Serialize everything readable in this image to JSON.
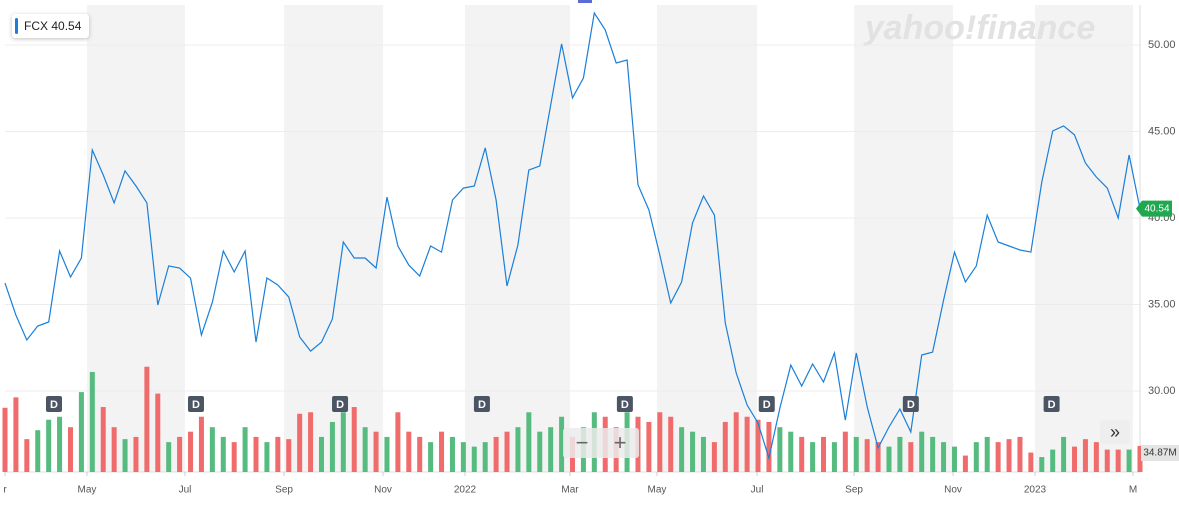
{
  "chart_data": {
    "type": "line",
    "watermark": "yahoo!finance",
    "series": [
      {
        "name": "FCX",
        "color": "#1a7fd9",
        "values": [
          36.24,
          34.39,
          32.95,
          33.76,
          33.99,
          38.09,
          36.59,
          37.69,
          43.93,
          42.49,
          40.87,
          42.72,
          41.85,
          40.87,
          34.97,
          37.23,
          37.11,
          36.53,
          33.24,
          35.14,
          38.09,
          36.88,
          38.09,
          32.83,
          36.53,
          36.13,
          35.43,
          33.12,
          32.31,
          32.83,
          34.16,
          38.61,
          37.69,
          37.69,
          37.11,
          41.21,
          38.38,
          37.28,
          36.65,
          38.38,
          38.03,
          41.04,
          41.73,
          41.85,
          44.05,
          41.04,
          36.07,
          38.44,
          42.77,
          43.01,
          46.53,
          50.06,
          46.94,
          48.09,
          51.85,
          50.87,
          48.96,
          49.13,
          41.91,
          40.46,
          37.86,
          35.09,
          36.3,
          39.71,
          41.27,
          40.17,
          33.93,
          31.04,
          29.19,
          28.15,
          26.13,
          29.02,
          31.5,
          30.29,
          31.56,
          30.52,
          32.2,
          28.32,
          32.2,
          29.08,
          26.71,
          27.92,
          28.96,
          27.63,
          32.08,
          32.25,
          35.26,
          38.03,
          36.3,
          37.23,
          40.17,
          38.61,
          38.38,
          38.15,
          38.03,
          42.08,
          45.03,
          45.32,
          44.8,
          43.18,
          42.37,
          41.73,
          40.0,
          43.64,
          40.54
        ]
      }
    ],
    "last_price_color": "#1fa84f",
    "xlim": [
      0,
      104
    ],
    "xticks": [
      {
        "value": 0,
        "label": "r"
      },
      {
        "value": 7.51,
        "label": "May"
      },
      {
        "value": 16.49,
        "label": "Jul"
      },
      {
        "value": 25.57,
        "label": "Sep"
      },
      {
        "value": 34.64,
        "label": "Nov"
      },
      {
        "value": 42.15,
        "label": "2022"
      },
      {
        "value": 51.77,
        "label": "Mar"
      },
      {
        "value": 59.74,
        "label": "May"
      },
      {
        "value": 68.91,
        "label": "Jul"
      },
      {
        "value": 77.8,
        "label": "Sep"
      },
      {
        "value": 86.87,
        "label": "Nov"
      },
      {
        "value": 94.38,
        "label": "2023"
      },
      {
        "value": 103.36,
        "label": "M"
      }
    ],
    "ylim": [
      25.32,
      52.31
    ],
    "yticks": [
      {
        "value": 30,
        "label": "30.00"
      },
      {
        "value": 35,
        "label": "35.00"
      },
      {
        "value": 40,
        "label": "40.00"
      },
      {
        "value": 45,
        "label": "45.00"
      },
      {
        "value": 50,
        "label": "50.00"
      }
    ],
    "grid": true,
    "volume": {
      "ylim": [
        0,
        150
      ],
      "up_color": "#55bb7f",
      "down_color": "#f06b6b",
      "last_label": "34.87M",
      "values": [
        86,
        100,
        44,
        56,
        70,
        74,
        60,
        107,
        134,
        87,
        60,
        44,
        47,
        141,
        105,
        40,
        47,
        54,
        74,
        60,
        47,
        40,
        60,
        47,
        40,
        47,
        44,
        78,
        80,
        47,
        67,
        80,
        87,
        60,
        54,
        47,
        80,
        54,
        47,
        40,
        54,
        47,
        40,
        34,
        40,
        47,
        54,
        60,
        80,
        54,
        60,
        74,
        47,
        60,
        80,
        74,
        60,
        80,
        74,
        67,
        80,
        74,
        60,
        54,
        47,
        40,
        67,
        80,
        74,
        70,
        67,
        60,
        54,
        47,
        40,
        47,
        40,
        54,
        47,
        44,
        40,
        34,
        47,
        40,
        54,
        47,
        40,
        34,
        22,
        40,
        47,
        40,
        44,
        47,
        26,
        20,
        30,
        47,
        34,
        44,
        40,
        30,
        30,
        30,
        34.87
      ]
    },
    "dividends": {
      "label": "D",
      "x": [
        4.49,
        17.5,
        30.7,
        43.7,
        56.8,
        69.8,
        83.0,
        95.9
      ]
    }
  }
}
